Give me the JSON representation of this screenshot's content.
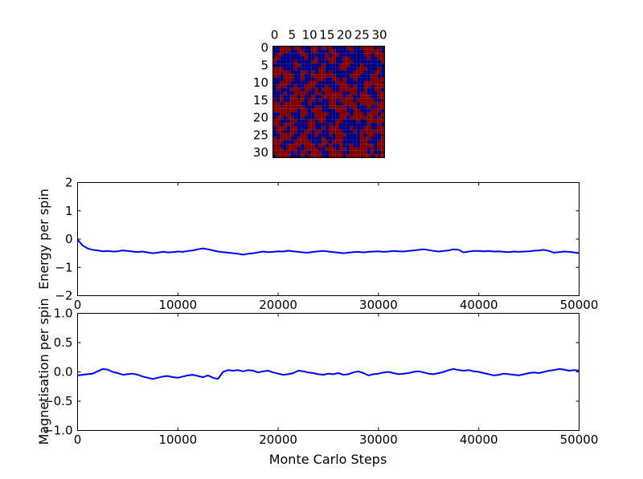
{
  "figure": {
    "background": "#ffffff",
    "frame_color": "#000000",
    "description": "Ising model Monte Carlo simulation figure: spin lattice snapshot, energy per spin trace, magnetisation per spin trace"
  },
  "chart_data": [
    {
      "type": "heatmap",
      "title": "",
      "description": "32x32 spin lattice snapshot, two-state (up=dark red, down=dark blue), jet colormap endpoints",
      "n": 32,
      "x_tick_values": [
        0,
        5,
        10,
        15,
        20,
        25,
        30
      ],
      "y_tick_values": [
        0,
        5,
        10,
        15,
        20,
        25,
        30
      ],
      "colors": {
        "spin_up": "#800000",
        "spin_down": "#000080"
      },
      "grid": [
        "BBRRRBRRBBBRRBRRRBBBBRRBBRRRRBRB",
        "BBRRRBBRRBBRRBBBRRBBBBRBBBRRRRRB",
        "BRRBBBBBRRBBBBBRBRRBBBBBBBRRBRRR",
        "RRBBBBBBBRBBRBBRRRBBRRBBBBBRBBRR",
        "RBBBBBRBBBBRRBBBRRBBRRRBBBBBBBBR",
        "BBBBBBRRBBBBBBRBBBBRRRBBBRBBBBBB",
        "RRRBBBRBBBBBBRRBBBBRRBBBRRRBBBRB",
        "RRRRRBBBRRBRBRRBRBBBBBBRRRBBBRRB",
        "RRBRRRBBRBBRRRRRRRBBBBRRRBBBRRBB",
        "BBBRRRBBRBBBRRRBBRRBRBBRBBBBRRRR",
        "BBRRRBBBBBRRRBBBBBRRRBBBBBRRRRRR",
        "BRRRBBRBBRRRBBBRBBBRRRBRBBRRBRRR",
        "BRBBBRRRBRRBRBRRRBBRRRRRBBRBBRRB",
        "BBBRBBRRRRBBRRBRRRRRBBRRBRRBBBRR",
        "BBRBBRRBRBBRBBRRRRRRBRRBBRRRBBRR",
        "RBRBBRRRRBRRBRBBRRBRRRRBRRRRRBBR",
        "RRBRRRRRBBRBBBBBRRBBRRRRBRRRRRRR",
        "RRRRRRRRRBBBRRBBRRRRRBRRBBBRBBRR",
        "RRRRRRRBRRBRRRBBBBRRRBBRRBBBRRRB",
        "BBRRRBBBRRBBRRRRBBBRRRBRRRBRRRBR",
        "BRRBRRBBRBBBRRRBBBBRRBRRRRRRRBRR",
        "RRBBBRRBBBRRBRRBBBRRBBBBRBBRRRRR",
        "RRBRRRBBBBRRBBBBRBRBBBBBBBBRBBRB",
        "BRRRBRRBBBRRBBRBRRRBBBRBBBRRBBRR",
        "BRRBBRRBBRRBRRBBRRRRBBBRBRRRRRRR",
        "BBRRRRBBRRBBRBBBRBRRRBBBBRBRRBBR",
        "RBRRRBBRRRBBBBRBBBRRBBBBBRRRBBBR",
        "RRRBBBRRRRRBBBRRBRRRBBBBBRRBBBRR",
        "RRBBRRRRBRRRBRRBRBBRBBRBBRRRRBRR",
        "RRRBRRRBBRRRRBBRRRBRRBRRRRRBRBRR",
        "RRRRRBRBRRBRRRBBRRRRBBRRRRRBRBBR",
        "BRRRRBBBRBRRRRBBRRRRBRRRRRRRBRRR"
      ]
    },
    {
      "type": "line",
      "series_name": "Energy per spin",
      "ylabel": "Energy per spin",
      "xlabel": "",
      "xlim": [
        0,
        50000
      ],
      "ylim": [
        -2,
        2
      ],
      "x_tick_values": [
        0,
        10000,
        20000,
        30000,
        40000,
        50000
      ],
      "x_tick_labels": [
        "0",
        "10000",
        "20000",
        "30000",
        "40000",
        "50000"
      ],
      "y_tick_values": [
        2,
        1,
        0,
        -1,
        -2
      ],
      "y_tick_labels": [
        "2",
        "1",
        "0",
        "−1",
        "−2"
      ],
      "line_color": "#0000ff",
      "grid_on": false,
      "x_step": 500,
      "values": [
        -0.02,
        -0.22,
        -0.33,
        -0.38,
        -0.4,
        -0.43,
        -0.42,
        -0.44,
        -0.43,
        -0.4,
        -0.42,
        -0.44,
        -0.46,
        -0.44,
        -0.47,
        -0.5,
        -0.48,
        -0.45,
        -0.47,
        -0.46,
        -0.44,
        -0.45,
        -0.42,
        -0.4,
        -0.36,
        -0.33,
        -0.36,
        -0.4,
        -0.44,
        -0.46,
        -0.48,
        -0.5,
        -0.52,
        -0.55,
        -0.52,
        -0.5,
        -0.47,
        -0.44,
        -0.46,
        -0.45,
        -0.43,
        -0.44,
        -0.41,
        -0.43,
        -0.45,
        -0.47,
        -0.48,
        -0.45,
        -0.43,
        -0.42,
        -0.44,
        -0.46,
        -0.48,
        -0.5,
        -0.48,
        -0.46,
        -0.45,
        -0.47,
        -0.45,
        -0.44,
        -0.43,
        -0.45,
        -0.44,
        -0.42,
        -0.43,
        -0.44,
        -0.42,
        -0.4,
        -0.38,
        -0.36,
        -0.39,
        -0.42,
        -0.44,
        -0.42,
        -0.4,
        -0.36,
        -0.38,
        -0.47,
        -0.44,
        -0.42,
        -0.42,
        -0.43,
        -0.42,
        -0.44,
        -0.43,
        -0.45,
        -0.46,
        -0.44,
        -0.45,
        -0.44,
        -0.43,
        -0.41,
        -0.4,
        -0.38,
        -0.42,
        -0.48,
        -0.46,
        -0.44,
        -0.45,
        -0.47,
        -0.5
      ]
    },
    {
      "type": "line",
      "series_name": "Magnetisation per spin",
      "ylabel": "Magnetisation per spin",
      "xlabel": "Monte Carlo Steps",
      "xlim": [
        0,
        50000
      ],
      "ylim": [
        -1,
        1
      ],
      "x_tick_values": [
        0,
        10000,
        20000,
        30000,
        40000,
        50000
      ],
      "x_tick_labels": [
        "0",
        "10000",
        "20000",
        "30000",
        "40000",
        "50000"
      ],
      "y_tick_values": [
        1,
        0.5,
        0,
        -0.5,
        -1
      ],
      "y_tick_labels": [
        "1.0",
        "0.5",
        "0.0",
        "−0.5",
        "−1.0"
      ],
      "line_color": "#0000ff",
      "grid_on": false,
      "x_step": 500,
      "values": [
        -0.06,
        -0.05,
        -0.04,
        -0.03,
        0.01,
        0.05,
        0.04,
        0.0,
        -0.02,
        -0.05,
        -0.04,
        -0.03,
        -0.05,
        -0.08,
        -0.1,
        -0.12,
        -0.1,
        -0.08,
        -0.07,
        -0.09,
        -0.1,
        -0.08,
        -0.06,
        -0.05,
        -0.07,
        -0.09,
        -0.06,
        -0.1,
        -0.12,
        0.0,
        0.03,
        0.02,
        0.03,
        0.01,
        0.03,
        0.02,
        -0.01,
        0.01,
        0.02,
        -0.01,
        -0.03,
        -0.05,
        -0.04,
        -0.02,
        0.02,
        0.01,
        -0.01,
        -0.02,
        -0.04,
        -0.05,
        -0.03,
        -0.04,
        -0.02,
        -0.05,
        -0.04,
        -0.01,
        0.01,
        -0.02,
        -0.06,
        -0.04,
        -0.03,
        -0.01,
        0.0,
        -0.02,
        -0.04,
        -0.03,
        -0.02,
        0.0,
        0.01,
        -0.01,
        -0.03,
        -0.04,
        -0.02,
        0.0,
        0.03,
        0.05,
        0.03,
        0.02,
        0.03,
        0.01,
        0.0,
        -0.02,
        -0.04,
        -0.06,
        -0.05,
        -0.03,
        -0.04,
        -0.05,
        -0.06,
        -0.04,
        -0.02,
        -0.01,
        -0.02,
        0.0,
        0.02,
        0.03,
        0.05,
        0.04,
        0.02,
        0.03,
        0.02
      ]
    }
  ]
}
